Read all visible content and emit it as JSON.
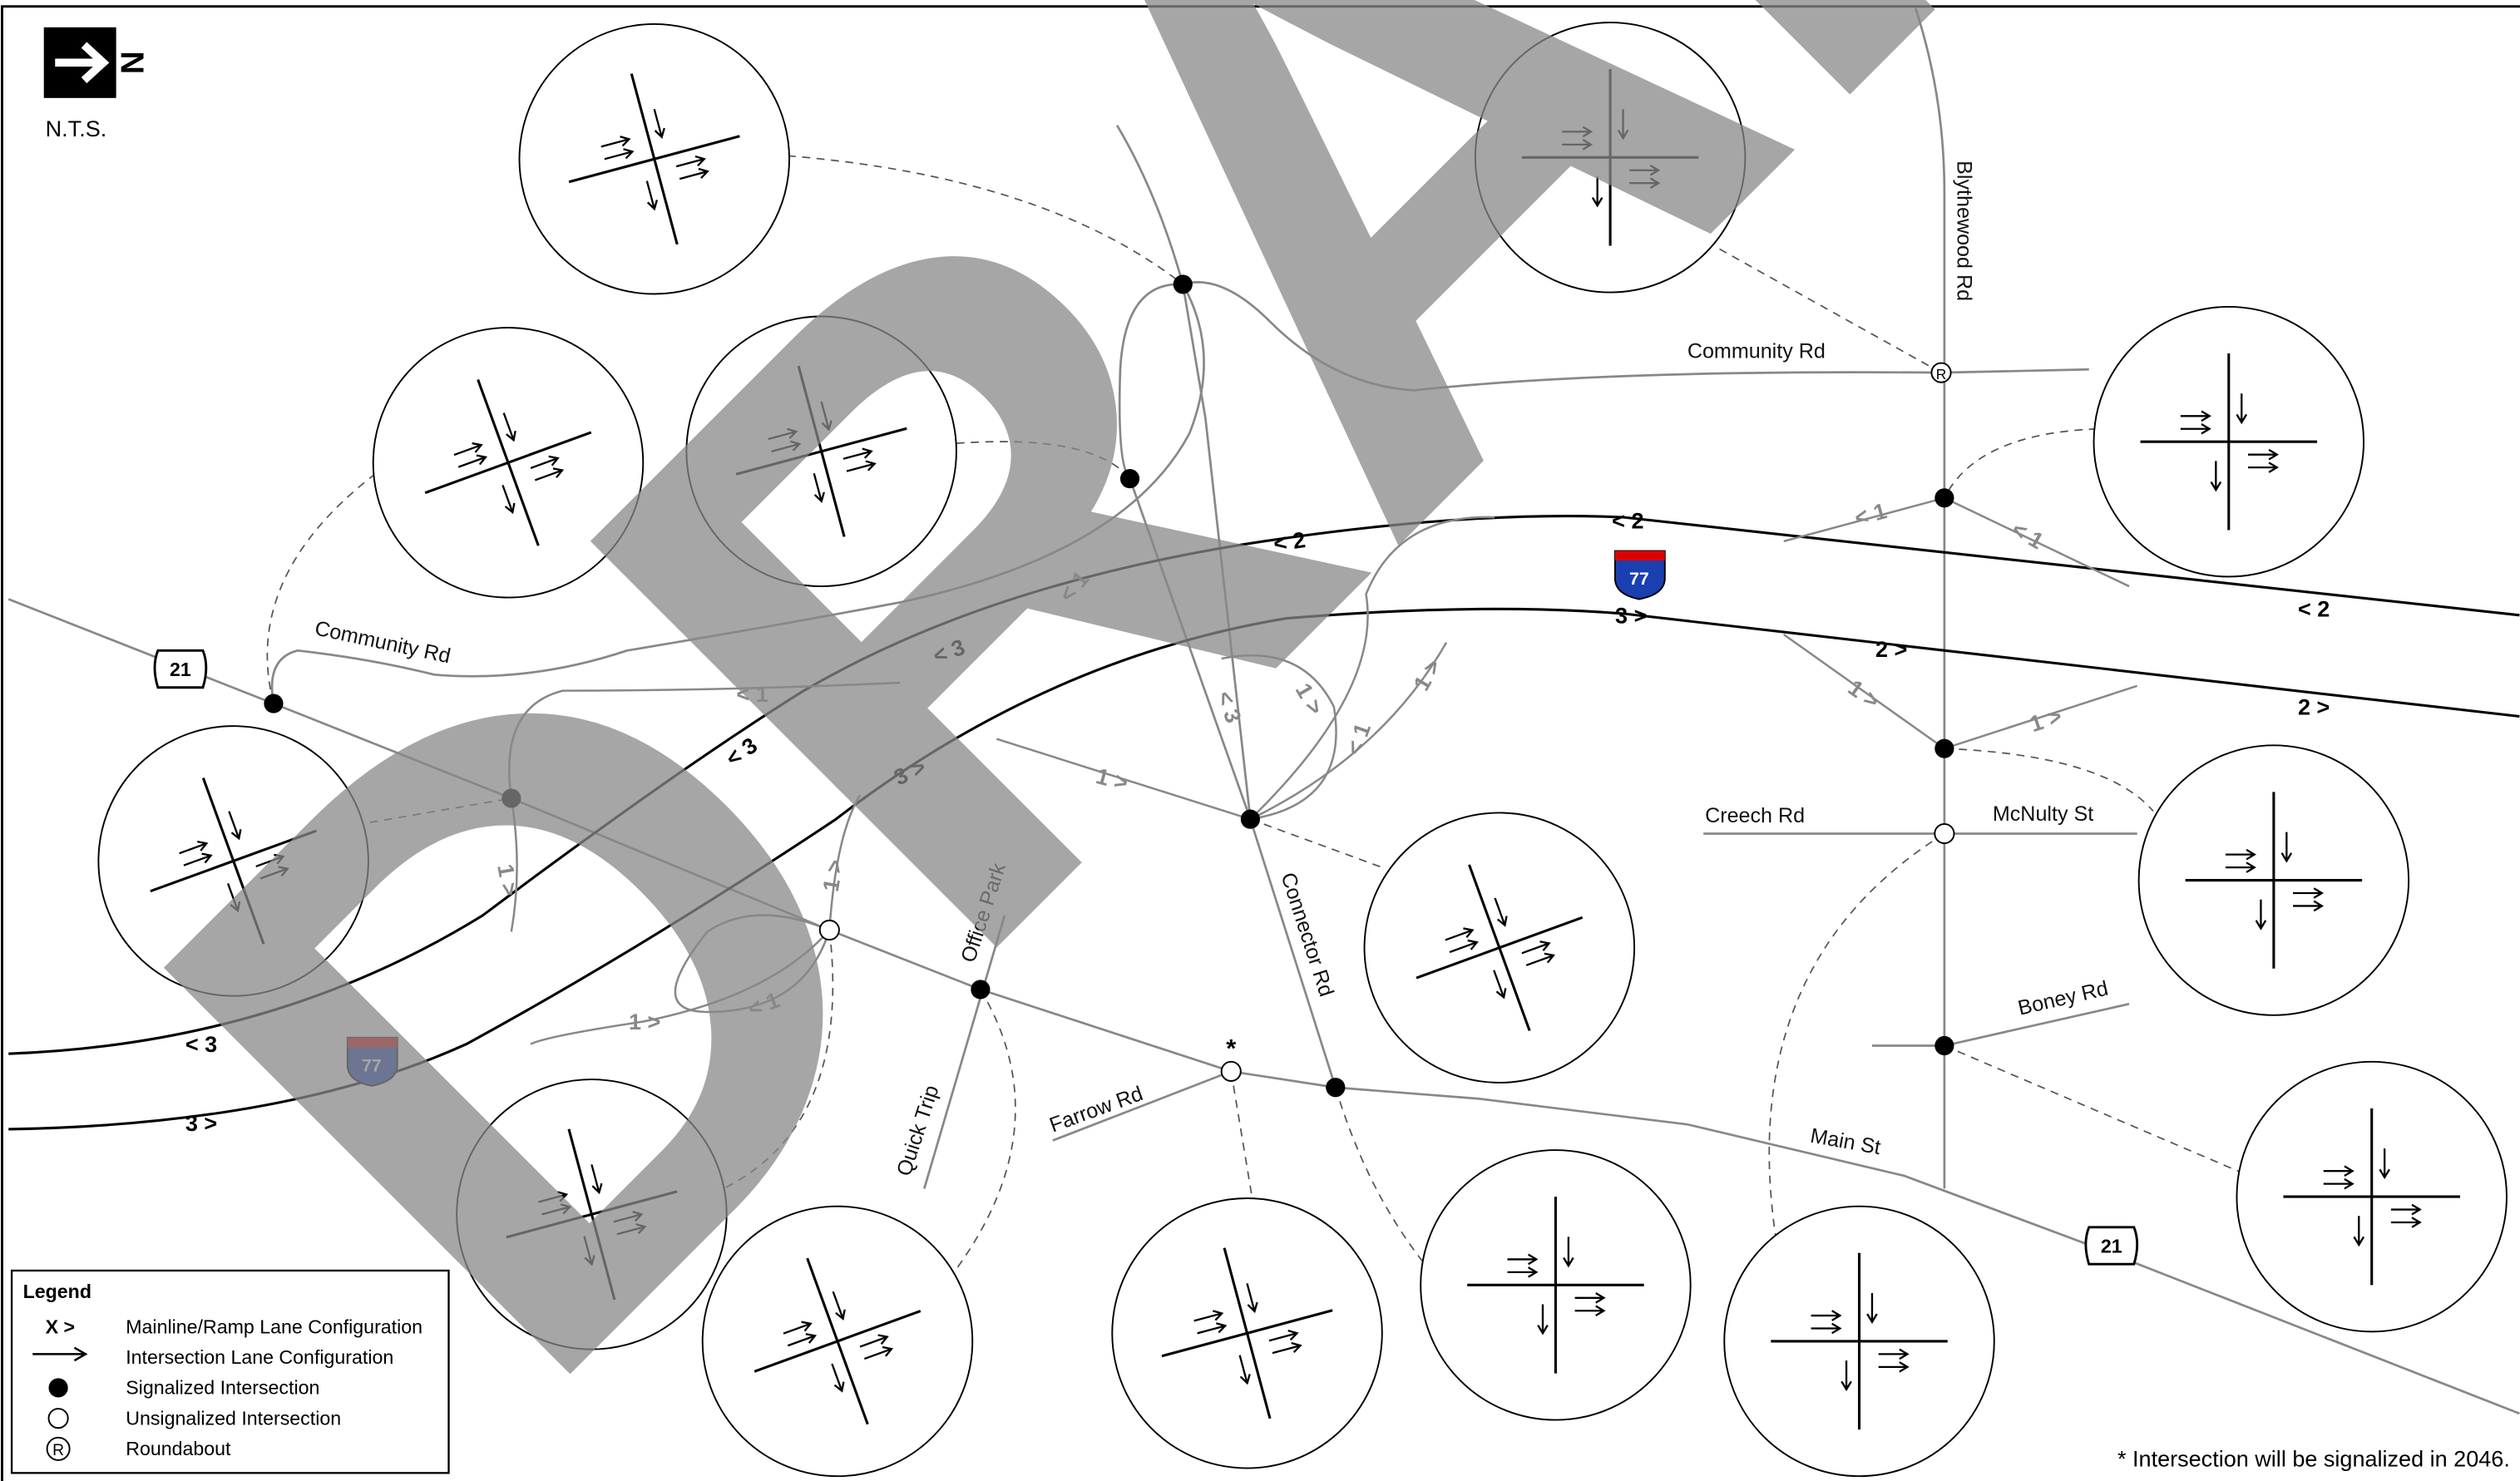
{
  "north_arrow": {
    "letter": "N",
    "scale": "N.T.S."
  },
  "watermark": "DRAFT",
  "road_labels": [
    "Community Rd",
    "Community Rd",
    "Blythewood Rd",
    "Creech Rd",
    "McNulty St",
    "Boney Rd",
    "Main St",
    "Connector Rd",
    "Office Park",
    "Quick Trip",
    "Farrow Rd"
  ],
  "shields": [
    "21",
    "21",
    "77",
    "77"
  ],
  "mainline_labels": [
    "< 2",
    "< 3",
    "< 3",
    "3 >",
    "< 3",
    "3 >",
    "< 2",
    "3 >",
    "2 >",
    "2 >",
    "< 2"
  ],
  "ramp_labels": [
    "< 1",
    "< 1",
    "1 >",
    "1 >",
    "< 1",
    "1 >",
    "< 1",
    "< 1",
    "1 >",
    "1 >",
    "< 3",
    "1 >",
    "< 1",
    "1 >",
    "1 >"
  ],
  "asterisk": "*",
  "legend": {
    "title": "Legend",
    "items": [
      {
        "symbol": "X >",
        "label": "Mainline/Ramp Lane Configuration"
      },
      {
        "label": "Intersection Lane Configuration"
      },
      {
        "label": "Signalized Intersection"
      },
      {
        "label": "Unsignalized Intersection"
      },
      {
        "symbol": "R",
        "label": "Roundabout"
      }
    ]
  },
  "note": "* Intersection will be signalized in 2046."
}
